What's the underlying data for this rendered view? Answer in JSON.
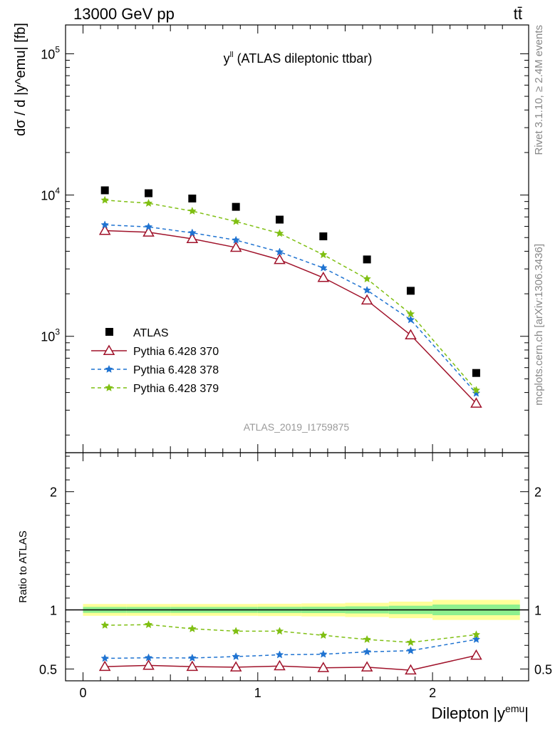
{
  "header": {
    "left": "13000 GeV pp",
    "right": "tt̄"
  },
  "side_text": {
    "rivet": "Rivet 3.1.10, ≥ 2.4M events",
    "mcplots": "mcplots.cern.ch [arXiv:1306.3436]"
  },
  "chart_data": [
    {
      "type": "scatter",
      "title": "y^ll (ATLAS dileptonic ttbar)",
      "title_main": "y",
      "title_sup": "ll",
      "title_rest": " (ATLAS dileptonic ttbar)",
      "watermark": "ATLAS_2019_I1759875",
      "ylabel": "dσ / d |y^emu| [fb]",
      "y_scale": "log",
      "ylim": [
        150,
        160000
      ],
      "xlim": [
        -0.1,
        2.55
      ],
      "y_ticks": [
        {
          "value": 1000,
          "base": "10",
          "exp": "3"
        },
        {
          "value": 10000,
          "base": "10",
          "exp": "4"
        },
        {
          "value": 100000,
          "base": "10",
          "exp": "5"
        }
      ],
      "legend_position": "bottom-left",
      "x": [
        0.125,
        0.375,
        0.625,
        0.875,
        1.125,
        1.375,
        1.625,
        1.875,
        2.25
      ],
      "series": [
        {
          "name": "ATLAS",
          "style": "data",
          "color": "#000000",
          "values": [
            10800,
            10300,
            9450,
            8250,
            6700,
            5100,
            3500,
            2100,
            550
          ]
        },
        {
          "name": "Pythia 6.428 370",
          "style": "solid-triangle",
          "color": "#a0122a",
          "values": [
            5600,
            5450,
            4900,
            4250,
            3480,
            2600,
            1800,
            1020,
            335
          ]
        },
        {
          "name": "Pythia 6.428 378",
          "style": "dashed-star",
          "color": "#1f73d1",
          "values": [
            6150,
            5950,
            5400,
            4800,
            3950,
            3050,
            2120,
            1310,
            395
          ]
        },
        {
          "name": "Pythia 6.428 379",
          "style": "dashed-star",
          "color": "#7fbf12",
          "values": [
            9200,
            8750,
            7700,
            6500,
            5350,
            3780,
            2550,
            1440,
            415
          ]
        }
      ]
    },
    {
      "type": "line",
      "ylabel": "Ratio to ATLAS",
      "xlabel": "Dilepton |y^emu|",
      "xlabel_main": "Dilepton |y",
      "xlabel_sup": "emu",
      "xlabel_end": "|",
      "ylim": [
        0.4,
        2.33
      ],
      "xlim": [
        -0.1,
        2.55
      ],
      "y_ticks": [
        0.5,
        1,
        2
      ],
      "y_tick_labels": [
        "0.5",
        "1",
        "2"
      ],
      "x_ticks": [
        0,
        1,
        2
      ],
      "x_tick_labels": [
        "0",
        "1",
        "2"
      ],
      "x": [
        0.125,
        0.375,
        0.625,
        0.875,
        1.125,
        1.375,
        1.625,
        1.875,
        2.25
      ],
      "bands": {
        "edges": [
          0,
          0.25,
          0.5,
          0.75,
          1.0,
          1.25,
          1.5,
          1.75,
          2.0,
          2.5
        ],
        "inner": [
          0.025,
          0.025,
          0.025,
          0.025,
          0.026,
          0.027,
          0.03,
          0.035,
          0.045
        ],
        "outer": [
          0.05,
          0.05,
          0.05,
          0.05,
          0.052,
          0.055,
          0.06,
          0.07,
          0.085
        ],
        "inner_color": "#8ef08e",
        "outer_color": "#ffff99"
      },
      "series": [
        {
          "name": "Pythia 6.428 370",
          "color": "#a0122a",
          "values": [
            0.52,
            0.53,
            0.52,
            0.515,
            0.525,
            0.51,
            0.515,
            0.49,
            0.615
          ]
        },
        {
          "name": "Pythia 6.428 378",
          "color": "#1f73d1",
          "values": [
            0.59,
            0.595,
            0.593,
            0.605,
            0.62,
            0.625,
            0.645,
            0.655,
            0.75
          ]
        },
        {
          "name": "Pythia 6.428 379",
          "color": "#7fbf12",
          "values": [
            0.87,
            0.875,
            0.84,
            0.82,
            0.82,
            0.785,
            0.75,
            0.725,
            0.79
          ]
        }
      ]
    }
  ]
}
